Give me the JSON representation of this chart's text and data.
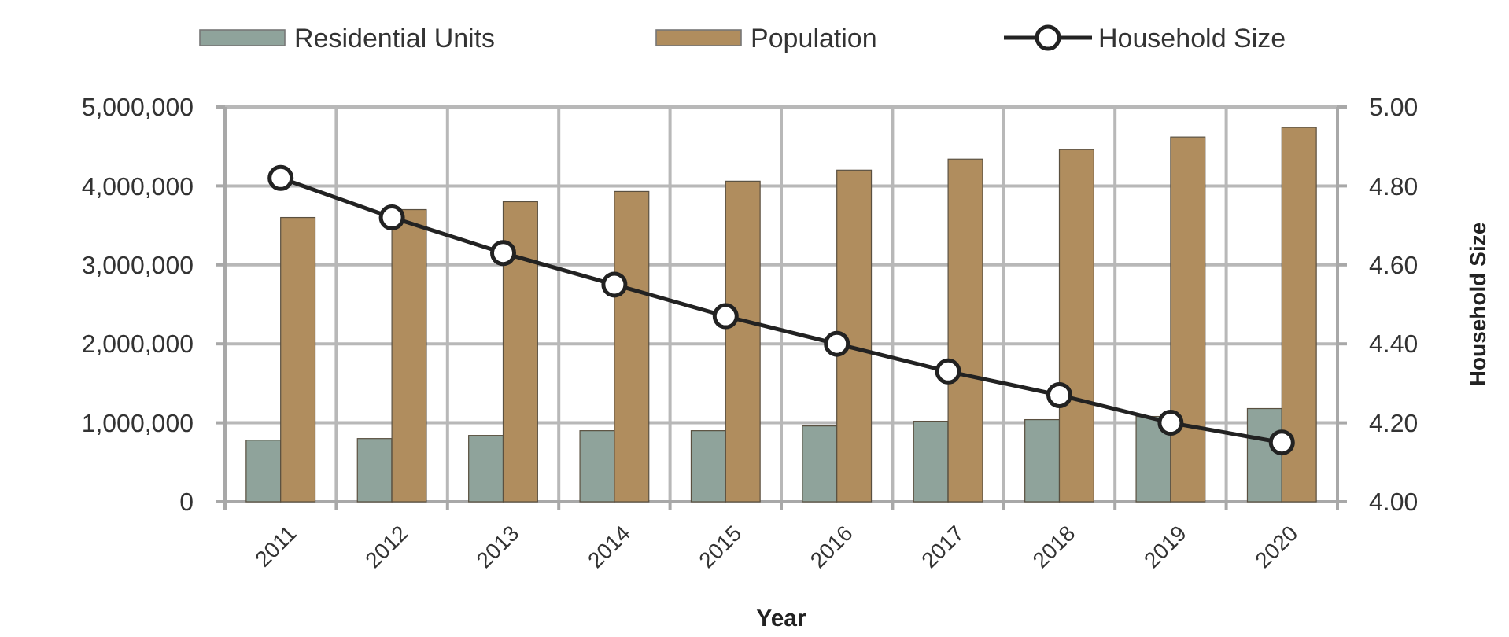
{
  "chart_data": {
    "type": "bar",
    "categories": [
      "2011",
      "2012",
      "2013",
      "2014",
      "2015",
      "2016",
      "2017",
      "2018",
      "2019",
      "2020"
    ],
    "xlabel": "Year",
    "y2label": "Household Size",
    "series": [
      {
        "name": "Residential Units",
        "color": "#8fa39b",
        "values": [
          780000,
          800000,
          840000,
          900000,
          900000,
          960000,
          1020000,
          1040000,
          1080000,
          1180000
        ]
      },
      {
        "name": "Population",
        "color": "#b08d5e",
        "values": [
          3600000,
          3700000,
          3800000,
          3930000,
          4060000,
          4200000,
          4340000,
          4460000,
          4620000,
          4740000
        ]
      },
      {
        "name": "Household Size",
        "type": "line",
        "axis": "y2",
        "color": "#222222",
        "values": [
          4.82,
          4.72,
          4.63,
          4.55,
          4.47,
          4.4,
          4.33,
          4.27,
          4.2,
          4.15
        ]
      }
    ],
    "ylim": [
      0,
      5000000
    ],
    "yticks": [
      0,
      {
        "value": 1000000,
        "label": "1,000,000"
      },
      {
        "value": 2000000,
        "label": "2,000,000"
      },
      {
        "value": 3000000,
        "label": "3,000,000"
      },
      {
        "value": 4000000,
        "label": "4,000,000"
      },
      {
        "value": 5000000,
        "label": "5,000,000"
      }
    ],
    "y2lim": [
      4,
      5
    ],
    "y2ticks": [
      {
        "value": 4,
        "label": "4.00"
      },
      {
        "value": 4.2,
        "label": "4.20"
      },
      {
        "value": 4.4,
        "label": "4.40"
      },
      {
        "value": 4.6,
        "label": "4.60"
      },
      {
        "value": 4.8,
        "label": "4.80"
      },
      {
        "value": 5,
        "label": "5.00"
      }
    ],
    "grid": true,
    "legend": "top",
    "marker": "circle"
  }
}
